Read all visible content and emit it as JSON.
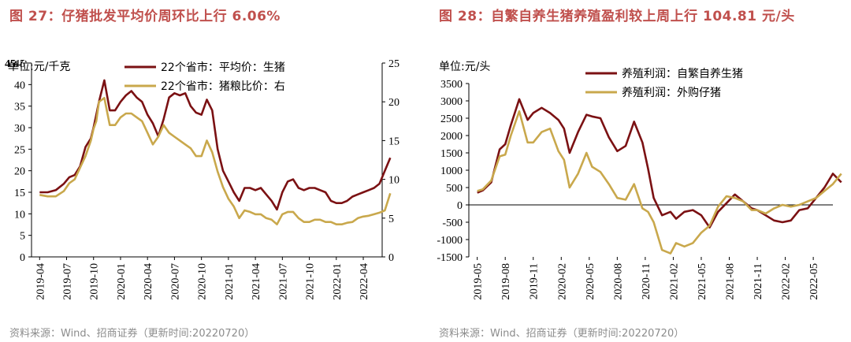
{
  "chart_data": [
    {
      "type": "line",
      "title": "图 27：仔猪批发平均价周环比上行 6.06%",
      "unit_label": "单位:元/千克",
      "corner_label": "45",
      "source": "资料来源：Wind、招商证券（更新时间:20220720）",
      "categories": [
        "2019-04",
        "2019-07",
        "2019-10",
        "2020-01",
        "2020-04",
        "2020-07",
        "2020-10",
        "2021-01",
        "2021-04",
        "2021-07",
        "2021-10",
        "2022-01",
        "2022-04"
      ],
      "y_left": {
        "min": 0,
        "max": 45,
        "ticks": [
          0,
          5,
          10,
          15,
          20,
          25,
          30,
          35,
          40,
          45
        ]
      },
      "y_right": {
        "min": 0,
        "max": 25,
        "ticks": [
          0,
          5,
          10,
          15,
          20,
          25
        ]
      },
      "series": [
        {
          "name": "22个省市：平均价：生猪",
          "axis": "left",
          "color": "#7b1113",
          "x": [
            0,
            0.3,
            0.6,
            0.9,
            1.1,
            1.3,
            1.5,
            1.7,
            1.9,
            2.0,
            2.1,
            2.2,
            2.4,
            2.6,
            2.8,
            3.0,
            3.2,
            3.4,
            3.6,
            3.8,
            4.0,
            4.2,
            4.4,
            4.6,
            4.8,
            5.0,
            5.2,
            5.4,
            5.6,
            5.8,
            6.0,
            6.2,
            6.4,
            6.6,
            6.8,
            7.0,
            7.2,
            7.4,
            7.6,
            7.8,
            8.0,
            8.2,
            8.4,
            8.6,
            8.8,
            9.0,
            9.2,
            9.4,
            9.6,
            9.8,
            10.0,
            10.2,
            10.4,
            10.6,
            10.8,
            11.0,
            11.2,
            11.4,
            11.6,
            11.8,
            12.0,
            12.2,
            12.4,
            12.6,
            12.8,
            13.0
          ],
          "values": [
            15,
            15,
            15.5,
            17,
            18.5,
            19,
            21,
            25.5,
            27.5,
            30,
            33,
            36,
            41,
            34,
            34,
            36,
            37.5,
            38.5,
            37,
            36,
            33,
            31,
            28,
            32,
            37,
            38,
            37.5,
            38,
            35,
            33.5,
            33,
            36.5,
            34,
            25,
            20,
            17.5,
            15,
            13,
            16,
            16,
            15.5,
            16,
            14.5,
            13,
            11,
            15,
            17.5,
            18,
            16,
            15.5,
            16,
            16,
            15.5,
            15,
            13,
            12.5,
            12.5,
            13,
            14,
            14.5,
            15,
            15.5,
            16,
            17,
            20,
            23
          ]
        },
        {
          "name": "22个省市：猪粮比价：右",
          "axis": "right",
          "color": "#c9a84c",
          "x": [
            0,
            0.3,
            0.6,
            0.9,
            1.1,
            1.3,
            1.5,
            1.7,
            1.9,
            2.0,
            2.1,
            2.2,
            2.4,
            2.6,
            2.8,
            3.0,
            3.2,
            3.4,
            3.6,
            3.8,
            4.0,
            4.2,
            4.4,
            4.6,
            4.8,
            5.0,
            5.2,
            5.4,
            5.6,
            5.8,
            6.0,
            6.2,
            6.4,
            6.6,
            6.8,
            7.0,
            7.2,
            7.4,
            7.6,
            7.8,
            8.0,
            8.2,
            8.4,
            8.6,
            8.8,
            9.0,
            9.2,
            9.4,
            9.6,
            9.8,
            10.0,
            10.2,
            10.4,
            10.6,
            10.8,
            11.0,
            11.2,
            11.4,
            11.6,
            11.8,
            12.0,
            12.2,
            12.4,
            12.6,
            12.8,
            13.0
          ],
          "values": [
            8,
            7.8,
            7.8,
            8.5,
            9.5,
            10,
            11.5,
            13,
            15,
            16.5,
            17.5,
            20,
            20.5,
            17,
            17,
            18,
            18.5,
            18.5,
            18,
            17.5,
            16,
            14.5,
            15.5,
            17,
            16,
            15.5,
            15,
            14.5,
            14,
            13,
            13,
            15,
            13.5,
            11,
            9,
            7.5,
            6.5,
            5,
            6,
            5.8,
            5.5,
            5.5,
            5,
            4.8,
            4.2,
            5.5,
            5.8,
            5.8,
            5,
            4.5,
            4.5,
            4.8,
            4.8,
            4.5,
            4.5,
            4.2,
            4.2,
            4.4,
            4.5,
            5.0,
            5.2,
            5.3,
            5.5,
            5.7,
            6,
            8.2
          ]
        }
      ]
    },
    {
      "type": "line",
      "title": "图 28：自繁自养生猪养殖盈利较上周上行 104.81 元/头",
      "unit_label": "单位:元/头",
      "source": "资料来源：Wind、招商证券（更新时间:20220720）",
      "categories": [
        "2019-05",
        "2019-08",
        "2019-11",
        "2020-02",
        "2020-05",
        "2020-08",
        "2020-11",
        "2021-02",
        "2021-05",
        "2021-08",
        "2021-11",
        "2022-02",
        "2022-05"
      ],
      "y_left": {
        "min": -1500,
        "max": 3500,
        "ticks": [
          -1500,
          -1000,
          -500,
          0,
          500,
          1000,
          1500,
          2000,
          2500,
          3000,
          3500
        ]
      },
      "series": [
        {
          "name": "养殖利润：自繁自养生猪",
          "axis": "left",
          "color": "#7b1113",
          "x": [
            0,
            0.2,
            0.5,
            0.8,
            1.0,
            1.2,
            1.5,
            1.8,
            2.0,
            2.3,
            2.6,
            2.9,
            3.1,
            3.3,
            3.6,
            3.9,
            4.1,
            4.4,
            4.7,
            5.0,
            5.3,
            5.6,
            5.9,
            6.1,
            6.3,
            6.6,
            6.9,
            7.1,
            7.4,
            7.7,
            8.0,
            8.3,
            8.6,
            8.9,
            9.2,
            9.5,
            9.8,
            10.0,
            10.3,
            10.6,
            10.9,
            11.2,
            11.5,
            11.8,
            12.1,
            12.4,
            12.7,
            13.0
          ],
          "values": [
            350,
            420,
            650,
            1600,
            1750,
            2300,
            3050,
            2450,
            2650,
            2800,
            2650,
            2450,
            2200,
            1500,
            2100,
            2600,
            2550,
            2500,
            1950,
            1550,
            1700,
            2400,
            1800,
            1050,
            200,
            -300,
            -200,
            -400,
            -200,
            -150,
            -300,
            -650,
            -200,
            50,
            300,
            100,
            -100,
            -150,
            -300,
            -450,
            -500,
            -450,
            -150,
            -100,
            200,
            500,
            900,
            650
          ]
        },
        {
          "name": "养殖利润：外购仔猪",
          "axis": "left",
          "color": "#c9a84c",
          "x": [
            0,
            0.2,
            0.5,
            0.8,
            1.0,
            1.2,
            1.5,
            1.8,
            2.0,
            2.3,
            2.6,
            2.9,
            3.1,
            3.3,
            3.6,
            3.9,
            4.1,
            4.4,
            4.7,
            5.0,
            5.3,
            5.6,
            5.9,
            6.1,
            6.3,
            6.6,
            6.9,
            7.1,
            7.4,
            7.7,
            8.0,
            8.3,
            8.6,
            8.9,
            9.2,
            9.5,
            9.8,
            10.0,
            10.3,
            10.6,
            10.9,
            11.2,
            11.5,
            11.8,
            12.1,
            12.4,
            12.7,
            13.0
          ],
          "values": [
            400,
            450,
            700,
            1400,
            1450,
            2000,
            2700,
            1800,
            1800,
            2100,
            2200,
            1550,
            1300,
            500,
            900,
            1500,
            1100,
            950,
            600,
            200,
            150,
            600,
            -100,
            -200,
            -500,
            -1300,
            -1400,
            -1100,
            -1200,
            -1100,
            -800,
            -600,
            -50,
            250,
            200,
            100,
            -150,
            -150,
            -250,
            -100,
            0,
            -50,
            0,
            100,
            200,
            400,
            600,
            900
          ]
        }
      ]
    }
  ]
}
